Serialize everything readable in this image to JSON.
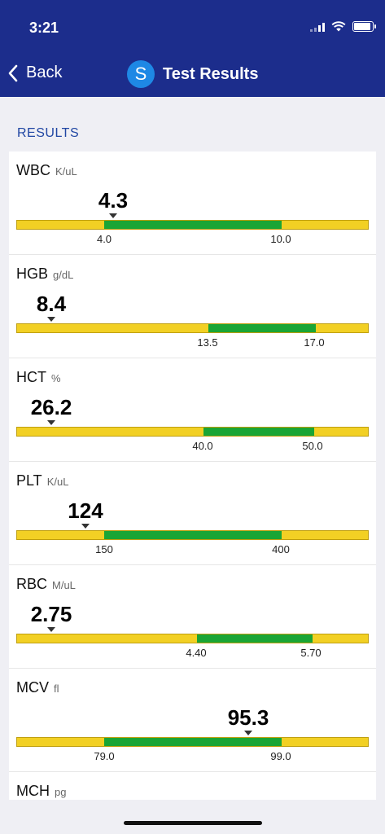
{
  "status_bar": {
    "time": "3:21"
  },
  "nav": {
    "back_label": "Back",
    "logo_letter": "S",
    "title": "Test Results"
  },
  "section_title": "RESULTS",
  "results": [
    {
      "name": "WBC",
      "unit": "K/uL",
      "value": "4.3",
      "low": "4.0",
      "high": "10.0"
    },
    {
      "name": "HGB",
      "unit": "g/dL",
      "value": "8.4",
      "low": "13.5",
      "high": "17.0"
    },
    {
      "name": "HCT",
      "unit": "%",
      "value": "26.2",
      "low": "40.0",
      "high": "50.0"
    },
    {
      "name": "PLT",
      "unit": "K/uL",
      "value": "124",
      "low": "150",
      "high": "400"
    },
    {
      "name": "RBC",
      "unit": "M/uL",
      "value": "2.75",
      "low": "4.40",
      "high": "5.70"
    },
    {
      "name": "MCV",
      "unit": "fl",
      "value": "95.3",
      "low": "79.0",
      "high": "99.0"
    },
    {
      "name": "MCH",
      "unit": "pg"
    }
  ]
}
